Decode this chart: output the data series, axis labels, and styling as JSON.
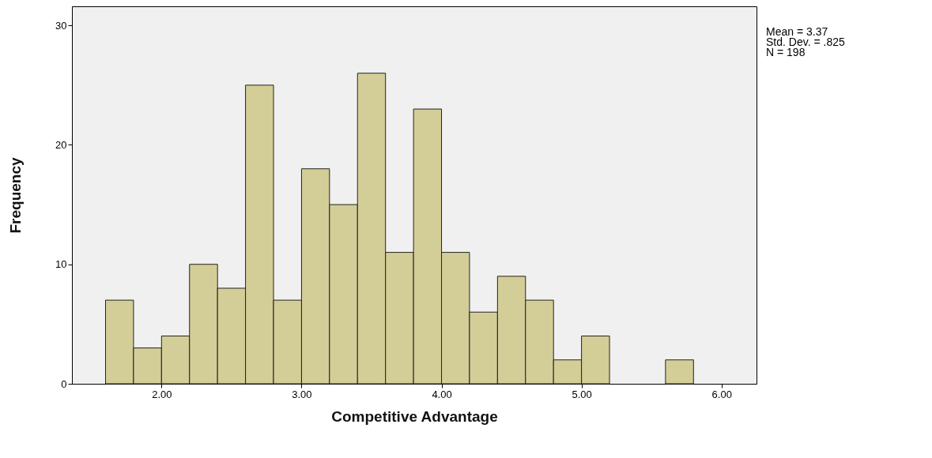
{
  "chart_data": {
    "type": "histogram",
    "xlabel": "Competitive Advantage",
    "ylabel": "Frequency",
    "bins": [
      1.6,
      1.8,
      2.0,
      2.2,
      2.4,
      2.6,
      2.8,
      3.0,
      3.2,
      3.4,
      3.6,
      3.8,
      4.0,
      4.2,
      4.4,
      4.6,
      4.8,
      5.0,
      5.2,
      5.4,
      5.6,
      5.8
    ],
    "values": [
      7,
      3,
      4,
      10,
      8,
      25,
      7,
      18,
      15,
      26,
      11,
      23,
      11,
      6,
      9,
      7,
      2,
      4,
      0,
      0,
      2
    ],
    "color": "#d3ce97",
    "xlim": [
      1.36,
      6.25
    ],
    "xticks": [
      {
        "value": 2,
        "label": "2.00"
      },
      {
        "value": 3,
        "label": "3.00"
      },
      {
        "value": 4,
        "label": "4.00"
      },
      {
        "value": 5,
        "label": "5.00"
      },
      {
        "value": 6,
        "label": "6.00"
      }
    ],
    "ylim": [
      0,
      31.6
    ],
    "yticks": [
      0,
      10,
      20,
      30
    ],
    "annotations": [
      "Mean = 3.37",
      "Std. Dev. = .825",
      "N = 198"
    ]
  }
}
